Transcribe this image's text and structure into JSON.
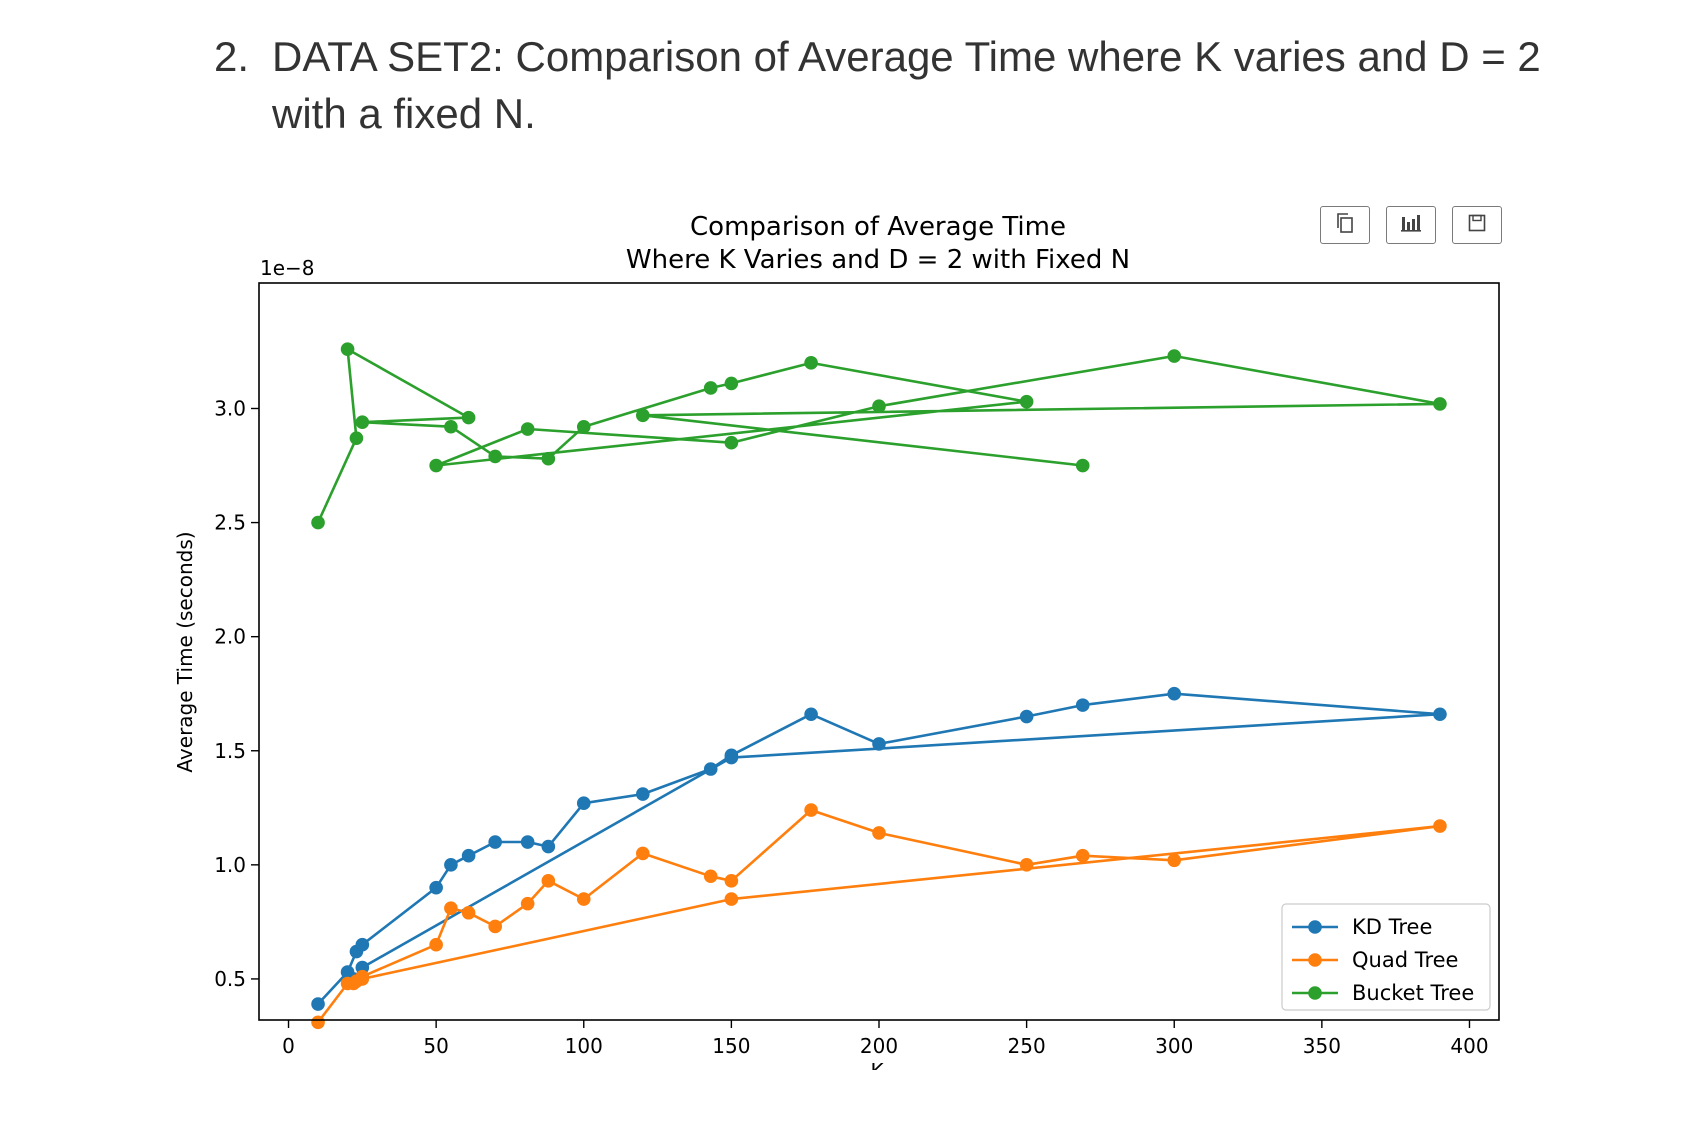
{
  "heading": {
    "number": "2.",
    "line1": "DATA SET2: Comparison of Average Time where K varies and D = 2",
    "line2": "with a fixed N."
  },
  "toolbar": {
    "buttons": [
      {
        "icon": "copy-icon"
      },
      {
        "icon": "bar-chart-icon"
      },
      {
        "icon": "save-icon"
      }
    ]
  },
  "chart_data": {
    "type": "line",
    "title": "Comparison of Average Time",
    "subtitle": "Where K Varies and D = 2 with Fixed N",
    "xlabel": "K",
    "ylabel": "Average Time (seconds)",
    "y_offset_label": "1e−8",
    "xlim": [
      -10,
      410
    ],
    "ylim": [
      0.32,
      3.55
    ],
    "xticks": [
      0,
      50,
      100,
      150,
      200,
      250,
      300,
      350,
      400
    ],
    "yticks": [
      0.5,
      1.0,
      1.5,
      2.0,
      2.5,
      3.0
    ],
    "ytick_labels": [
      "0.5",
      "1.0",
      "1.5",
      "2.0",
      "2.5",
      "3.0"
    ],
    "grid": false,
    "legend_position": "bottom-right",
    "series": [
      {
        "name": "KD Tree",
        "color": "#1f77b4",
        "x": [
          10,
          20,
          23,
          25,
          50,
          55,
          61,
          70,
          81,
          88,
          100,
          120,
          143,
          150,
          177,
          200,
          250,
          269,
          300,
          390,
          150,
          25,
          22
        ],
        "y": [
          0.39,
          0.53,
          0.62,
          0.65,
          0.9,
          1.0,
          1.04,
          1.1,
          1.1,
          1.08,
          1.27,
          1.31,
          1.42,
          1.48,
          1.66,
          1.53,
          1.65,
          1.7,
          1.75,
          1.66,
          1.47,
          0.55,
          0.5
        ]
      },
      {
        "name": "Quad Tree",
        "color": "#ff7f0e",
        "x": [
          10,
          20,
          23,
          25,
          50,
          55,
          61,
          70,
          81,
          88,
          100,
          120,
          143,
          150,
          177,
          200,
          250,
          269,
          300,
          390,
          150,
          25,
          22
        ],
        "y": [
          0.31,
          0.48,
          0.49,
          0.51,
          0.65,
          0.81,
          0.79,
          0.73,
          0.83,
          0.93,
          0.85,
          1.05,
          0.95,
          0.93,
          1.24,
          1.14,
          1.0,
          1.04,
          1.02,
          1.17,
          0.85,
          0.5,
          0.48
        ]
      },
      {
        "name": "Bucket Tree",
        "color": "#2ca02c",
        "x": [
          10,
          23,
          20,
          61,
          25,
          55,
          70,
          88,
          100,
          143,
          150,
          177,
          250,
          50,
          81,
          150,
          200,
          300,
          390,
          120,
          269
        ],
        "y": [
          2.5,
          2.87,
          3.26,
          2.96,
          2.94,
          2.92,
          2.79,
          2.78,
          2.92,
          3.09,
          3.11,
          3.2,
          3.03,
          2.75,
          2.91,
          2.85,
          3.01,
          3.23,
          3.02,
          2.97,
          2.75
        ]
      }
    ]
  }
}
